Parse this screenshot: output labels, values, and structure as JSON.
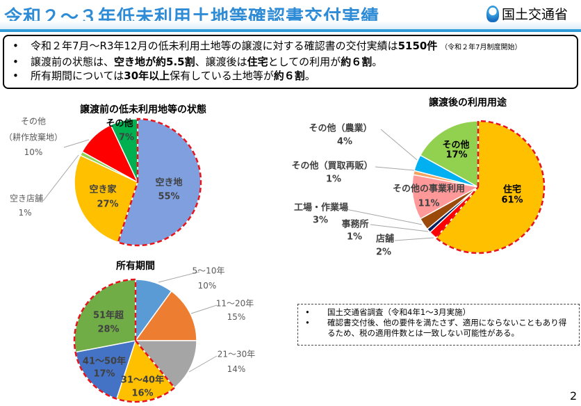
{
  "header": {
    "title": "令和２～３年低未利用土地等確認書交付実績",
    "logo_text": "国土交通省"
  },
  "summary": {
    "line1": {
      "text": "令和２年7月～R3年12月の低未利用土地等の譲渡に対する確認書の交付実績は",
      "bold": "5150件",
      "note": "（令和２年7月制度開始）"
    },
    "line2": {
      "a": "譲渡前の状態は、",
      "b": "空き地が約5.5割",
      "c": "、譲渡後は",
      "d": "住宅",
      "e": "としての利用が",
      "f": "約６割",
      "g": "。"
    },
    "line3": {
      "a": "所有期間については",
      "b": "30年以上",
      "c": "保有している土地等が",
      "d": "約６割",
      "e": "。"
    }
  },
  "chart_data": [
    {
      "type": "pie",
      "title": "譲渡前の低未利用地等の状態",
      "start": "top",
      "direction": "clockwise",
      "slices": [
        {
          "label": "空き地",
          "value": 55,
          "pct": "55%",
          "color": "#7f9fdf",
          "highlight": true
        },
        {
          "label": "空き家",
          "value": 27,
          "pct": "27%",
          "color": "#ffc000"
        },
        {
          "label": "空き店舗",
          "value": 1,
          "pct": "1%",
          "color": "#92d050"
        },
        {
          "label": "その他",
          "label2": "（耕作放棄地）",
          "value": 10,
          "pct": "10%",
          "color": "#ff0000"
        },
        {
          "label": "その他",
          "value": 7,
          "pct": "7%",
          "color": "#00b050"
        }
      ]
    },
    {
      "type": "pie",
      "title": "譲渡後の利用用途",
      "start": "top",
      "direction": "clockwise",
      "slices": [
        {
          "label": "住宅",
          "value": 61,
          "pct": "61%",
          "color": "#ffc000",
          "highlight": true
        },
        {
          "label": "店舗",
          "value": 2,
          "pct": "2%",
          "color": "#ff0000"
        },
        {
          "label": "事務所",
          "value": 1,
          "pct": "1%",
          "color": "#002060"
        },
        {
          "label": "工場・作業場",
          "value": 3,
          "pct": "3%",
          "color": "#9c4a0c"
        },
        {
          "label": "その他の事業利用",
          "value": 11,
          "pct": "11%",
          "color": "#ff9999"
        },
        {
          "label": "その他（買取再販）",
          "value": 1,
          "pct": "1%",
          "color": "#f4a460"
        },
        {
          "label": "その他（農業）",
          "value": 4,
          "pct": "4%",
          "color": "#00b0f0"
        },
        {
          "label": "その他",
          "value": 17,
          "pct": "17%",
          "color": "#92d050"
        }
      ]
    },
    {
      "type": "pie",
      "title": "所有期間",
      "start": "top",
      "direction": "clockwise",
      "slices": [
        {
          "label": "5～10年",
          "value": 10,
          "pct": "10%",
          "color": "#5b9bd5"
        },
        {
          "label": "11～20年",
          "value": 15,
          "pct": "15%",
          "color": "#ed7d31"
        },
        {
          "label": "21～30年",
          "value": 14,
          "pct": "14%",
          "color": "#a5a5a5"
        },
        {
          "label": "31～40年",
          "value": 16,
          "pct": "16%",
          "color": "#ffc000",
          "highlight": true
        },
        {
          "label": "41～50年",
          "value": 17,
          "pct": "17%",
          "color": "#4472c4",
          "highlight": true
        },
        {
          "label": "51年超",
          "value": 28,
          "pct": "28%",
          "color": "#70ad47",
          "highlight": true
        }
      ]
    }
  ],
  "notes": [
    "国土交通省調査（令和4年1～3月実施）",
    "確認書交付後、他の要件を満たさず、適用にならないこともあり得るため、税の適用件数とは一致しない可能性がある。"
  ],
  "page_number": "2"
}
